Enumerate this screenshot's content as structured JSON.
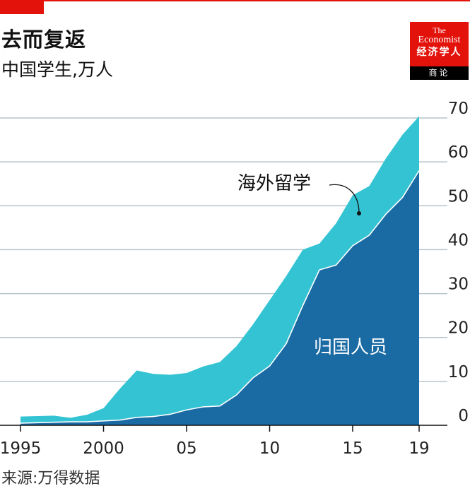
{
  "header": {
    "title": "去而复返",
    "subtitle": "中国学生,万人"
  },
  "logo": {
    "the": "The",
    "name": "Economist",
    "chinese": "经济学人",
    "section": "商论"
  },
  "source": "来源:万得数据",
  "colors": {
    "accent_red": "#e3120b",
    "overseas": "#33c3d3",
    "returnees": "#1a6aa3",
    "gridline": "#b8c4cc"
  },
  "chart_data": {
    "type": "area",
    "x": [
      1995,
      1996,
      1997,
      1998,
      1999,
      2000,
      2001,
      2002,
      2003,
      2004,
      2005,
      2006,
      2007,
      2008,
      2009,
      2010,
      2011,
      2012,
      2013,
      2014,
      2015,
      2016,
      2017,
      2018,
      2019
    ],
    "x_tick_values": [
      1995,
      2000,
      2005,
      2010,
      2015,
      2019
    ],
    "x_tick_labels": [
      "1995",
      "2000",
      "05",
      "10",
      "15",
      "19"
    ],
    "y_ticks": [
      0,
      10,
      20,
      30,
      40,
      50,
      60,
      70
    ],
    "ylim": [
      0,
      70
    ],
    "grid": true,
    "series": [
      {
        "name": "海外留学",
        "values": [
          2.0,
          2.1,
          2.2,
          1.7,
          2.4,
          3.9,
          8.4,
          12.5,
          11.7,
          11.5,
          11.9,
          13.4,
          14.4,
          18.0,
          23.0,
          28.5,
          34.0,
          40.0,
          41.4,
          46.0,
          52.4,
          54.5,
          60.8,
          66.2,
          70.4
        ]
      },
      {
        "name": "归国人员",
        "values": [
          0.5,
          0.6,
          0.7,
          0.8,
          0.8,
          1.0,
          1.2,
          1.8,
          2.0,
          2.5,
          3.5,
          4.2,
          4.4,
          6.9,
          10.8,
          13.5,
          18.6,
          27.3,
          35.4,
          36.5,
          40.9,
          43.3,
          48.1,
          51.9,
          58.0
        ]
      }
    ]
  }
}
